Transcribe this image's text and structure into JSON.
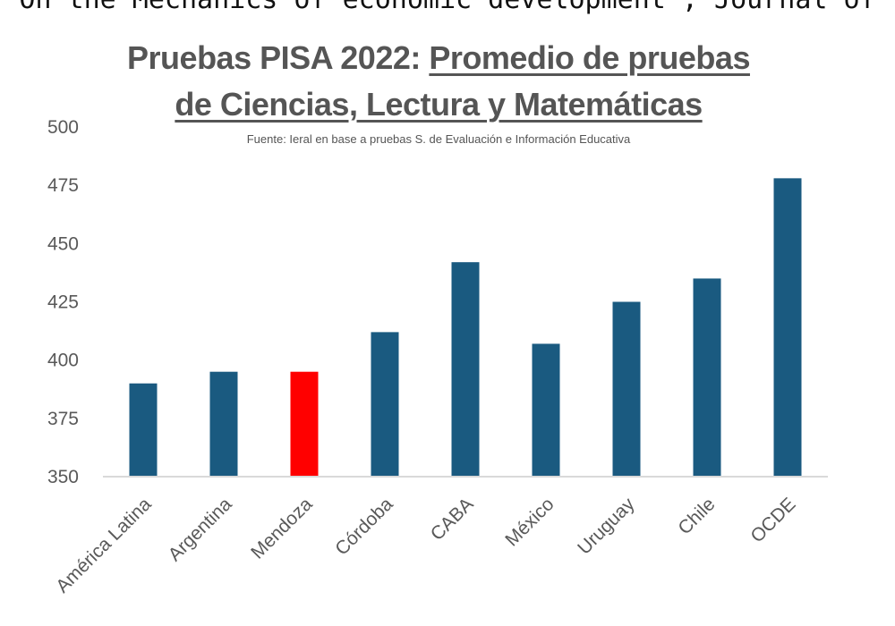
{
  "header": {
    "cut_text": "On the Mechanics of economic development , Journal of"
  },
  "chart_data": {
    "type": "bar",
    "title_part1": "Pruebas PISA 2022: ",
    "title_part2": "Promedio de pruebas",
    "title_line2": "de Ciencias, Lectura y Matemáticas",
    "subtitle": "Fuente: Ieral en base a pruebas S. de Evaluación e Información Educativa",
    "categories": [
      "América Latina",
      "Argentina",
      "Mendoza",
      "Córdoba",
      "CABA",
      "México",
      "Uruguay",
      "Chile",
      "OCDE"
    ],
    "values": [
      390,
      395,
      395,
      412,
      442,
      407,
      425,
      435,
      478
    ],
    "ylim": [
      350,
      500
    ],
    "yticks": [
      350,
      375,
      400,
      425,
      450,
      475,
      500
    ],
    "bar_color": "#1a5a80",
    "highlight_color": "#ff0000",
    "highlight_index": 2,
    "grid": false
  }
}
